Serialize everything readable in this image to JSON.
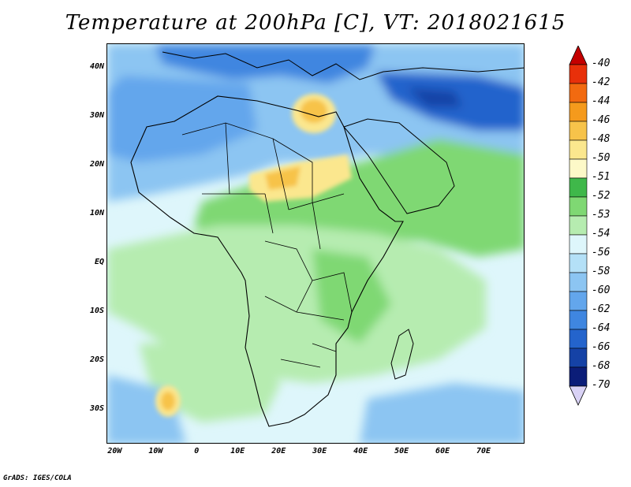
{
  "title": "Temperature at 200hPa [C], VT: 2018021615",
  "credit": "GrADS: IGES/COLA",
  "y_ticks": [
    {
      "label": "40N",
      "lat": 40
    },
    {
      "label": "30N",
      "lat": 30
    },
    {
      "label": "20N",
      "lat": 20
    },
    {
      "label": "10N",
      "lat": 10
    },
    {
      "label": "EQ",
      "lat": 0
    },
    {
      "label": "10S",
      "lat": -10
    },
    {
      "label": "20S",
      "lat": -20
    },
    {
      "label": "30S",
      "lat": -30
    }
  ],
  "x_ticks": [
    {
      "label": "20W",
      "lon": -20
    },
    {
      "label": "10W",
      "lon": -10
    },
    {
      "label": "0",
      "lon": 0
    },
    {
      "label": "10E",
      "lon": 10
    },
    {
      "label": "20E",
      "lon": 20
    },
    {
      "label": "30E",
      "lon": 30
    },
    {
      "label": "40E",
      "lon": 40
    },
    {
      "label": "50E",
      "lon": 50
    },
    {
      "label": "60E",
      "lon": 60
    },
    {
      "label": "70E",
      "lon": 70
    }
  ],
  "legend": [
    {
      "label": "-40",
      "color": "#c40000"
    },
    {
      "label": "-42",
      "color": "#e8300a"
    },
    {
      "label": "-44",
      "color": "#f26a10"
    },
    {
      "label": "-46",
      "color": "#f59a1c"
    },
    {
      "label": "-48",
      "color": "#f7c34a"
    },
    {
      "label": "-50",
      "color": "#fbe78e"
    },
    {
      "label": "-51",
      "color": "#fdf9c8"
    },
    {
      "label": "-52",
      "color": "#3fb84a"
    },
    {
      "label": "-53",
      "color": "#7fd873"
    },
    {
      "label": "-54",
      "color": "#b6ecb0"
    },
    {
      "label": "-56",
      "color": "#def6fb"
    },
    {
      "label": "-58",
      "color": "#b4e0f7"
    },
    {
      "label": "-60",
      "color": "#8cc5f2"
    },
    {
      "label": "-62",
      "color": "#63a6ec"
    },
    {
      "label": "-64",
      "color": "#3f86e0"
    },
    {
      "label": "-66",
      "color": "#2464cc"
    },
    {
      "label": "-68",
      "color": "#1542a6"
    },
    {
      "label": "-70",
      "color": "#0b1d78"
    },
    {
      "label": "",
      "color": "#d9d2f5"
    }
  ],
  "map": {
    "lon_range": [
      -22,
      80
    ],
    "lat_range": [
      -37,
      45
    ],
    "background_color": "#def6fb"
  }
}
